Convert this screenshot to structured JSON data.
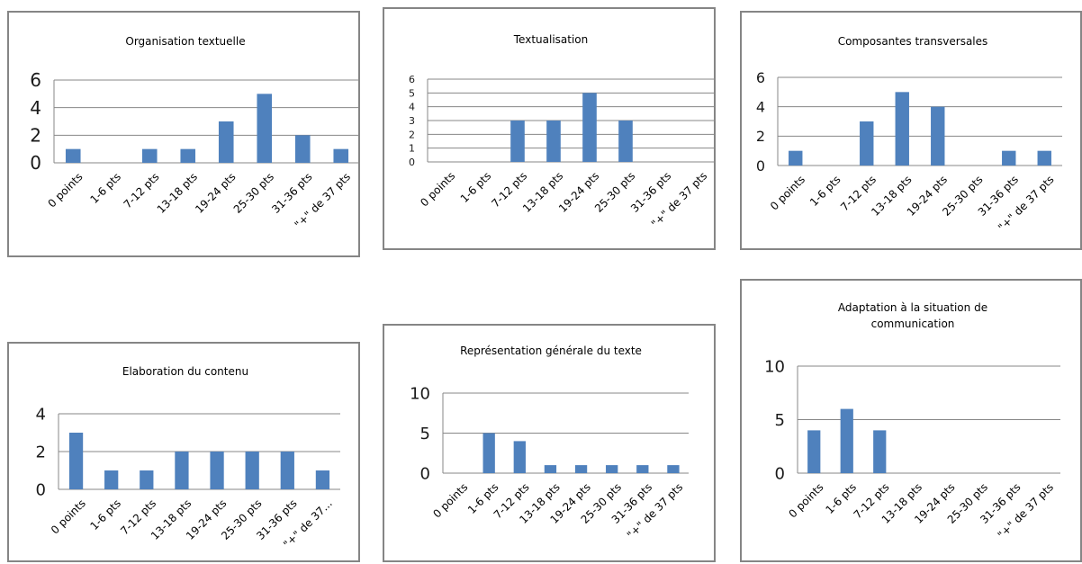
{
  "colors": {
    "bar": "#4f81bd",
    "grid": "#878787",
    "axis": "#878787",
    "border": "#858585",
    "text": "#000000"
  },
  "chart_data": [
    {
      "type": "bar",
      "title": [
        "Organisation textuelle"
      ],
      "categories": [
        "0 points",
        "1-6 pts",
        "7-12 pts",
        "13-18 pts",
        "19-24 pts",
        "25-30 pts",
        "31-36 pts",
        "\"+\" de 37 pts"
      ],
      "values": [
        1,
        0,
        1,
        1,
        3,
        5,
        2,
        1
      ],
      "ylim": [
        0,
        6
      ],
      "yticks": [
        0,
        2,
        4,
        6
      ],
      "grid": true,
      "legend": "none"
    },
    {
      "type": "bar",
      "title": [
        "Textualisation"
      ],
      "categories": [
        "0 points",
        "1-6 pts",
        "7-12 pts",
        "13-18 pts",
        "19-24 pts",
        "25-30 pts",
        "31-36 pts",
        "\"+\" de 37 pts"
      ],
      "values": [
        0,
        0,
        3,
        3,
        5,
        3,
        0,
        0
      ],
      "ylim": [
        0,
        6
      ],
      "yticks": [
        0,
        1,
        2,
        3,
        4,
        5,
        6
      ],
      "grid": true,
      "legend": "none"
    },
    {
      "type": "bar",
      "title": [
        "Composantes transversales"
      ],
      "categories": [
        "0 points",
        "1-6 pts",
        "7-12 pts",
        "13-18 pts",
        "19-24 pts",
        "25-30 pts",
        "31-36 pts",
        "\"+\" de 37 pts"
      ],
      "values": [
        1,
        0,
        3,
        5,
        4,
        0,
        1,
        1
      ],
      "ylim": [
        0,
        6
      ],
      "yticks": [
        0,
        2,
        4,
        6
      ],
      "grid": true,
      "legend": "none"
    },
    {
      "type": "bar",
      "title": [
        "Elaboration du contenu"
      ],
      "categories": [
        "0 points",
        "1-6 pts",
        "7-12 pts",
        "13-18 pts",
        "19-24 pts",
        "25-30 pts",
        "31-36 pts",
        "\"+\" de 37..."
      ],
      "values": [
        3,
        1,
        1,
        2,
        2,
        2,
        2,
        1
      ],
      "ylim": [
        0,
        4
      ],
      "yticks": [
        0,
        2,
        4
      ],
      "grid": true,
      "legend": "none"
    },
    {
      "type": "bar",
      "title": [
        "Représentation générale du texte"
      ],
      "categories": [
        "0 points",
        "1-6 pts",
        "7-12 pts",
        "13-18 pts",
        "19-24 pts",
        "25-30 pts",
        "31-36 pts",
        "\"+\" de 37 pts"
      ],
      "values": [
        0,
        5,
        4,
        1,
        1,
        1,
        1,
        1
      ],
      "ylim": [
        0,
        10
      ],
      "yticks": [
        0,
        5,
        10
      ],
      "grid": true,
      "legend": "none"
    },
    {
      "type": "bar",
      "title": [
        "Adaptation à la situation de",
        "communication"
      ],
      "categories": [
        "0 points",
        "1-6 pts",
        "7-12 pts",
        "13-18 pts",
        "19-24 pts",
        "25-30 pts",
        "31-36 pts",
        "\"+\" de 37 pts"
      ],
      "values": [
        4,
        6,
        4,
        0,
        0,
        0,
        0,
        0
      ],
      "ylim": [
        0,
        10
      ],
      "yticks": [
        0,
        5,
        10
      ],
      "grid": true,
      "legend": "none"
    }
  ]
}
